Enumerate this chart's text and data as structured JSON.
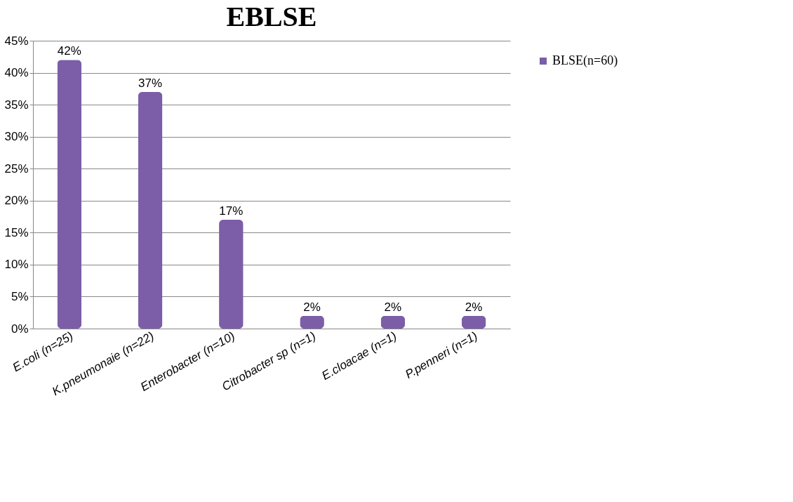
{
  "chart_data": {
    "type": "bar",
    "title": "EBLSE",
    "categories": [
      "E.coli\n(n=25)",
      "K.pneumonaie\n(n=22)",
      "Enterobacter\n(n=10)",
      "Citrobacter sp\n(n=1)",
      "E.cloacae\n(n=1)",
      "P.penneri\n(n=1)"
    ],
    "series": [
      {
        "name": "BLSE(n=60)",
        "color": "#7b5ea7",
        "values": [
          42,
          37,
          17,
          2,
          2,
          2
        ],
        "value_labels": [
          "42%",
          "37%",
          "17%",
          "2%",
          "2%",
          "2%"
        ]
      }
    ],
    "ylim": [
      0,
      45
    ],
    "yticks": [
      {
        "value": 0,
        "label": "0%"
      },
      {
        "value": 5,
        "label": "5%"
      },
      {
        "value": 10,
        "label": "10%"
      },
      {
        "value": 15,
        "label": "15%"
      },
      {
        "value": 20,
        "label": "20%"
      },
      {
        "value": 25,
        "label": "25%"
      },
      {
        "value": 30,
        "label": "30%"
      },
      {
        "value": 35,
        "label": "35%"
      },
      {
        "value": 40,
        "label": "40%"
      },
      {
        "value": 45,
        "label": "45%"
      }
    ],
    "grid": "y",
    "legend": "right"
  }
}
